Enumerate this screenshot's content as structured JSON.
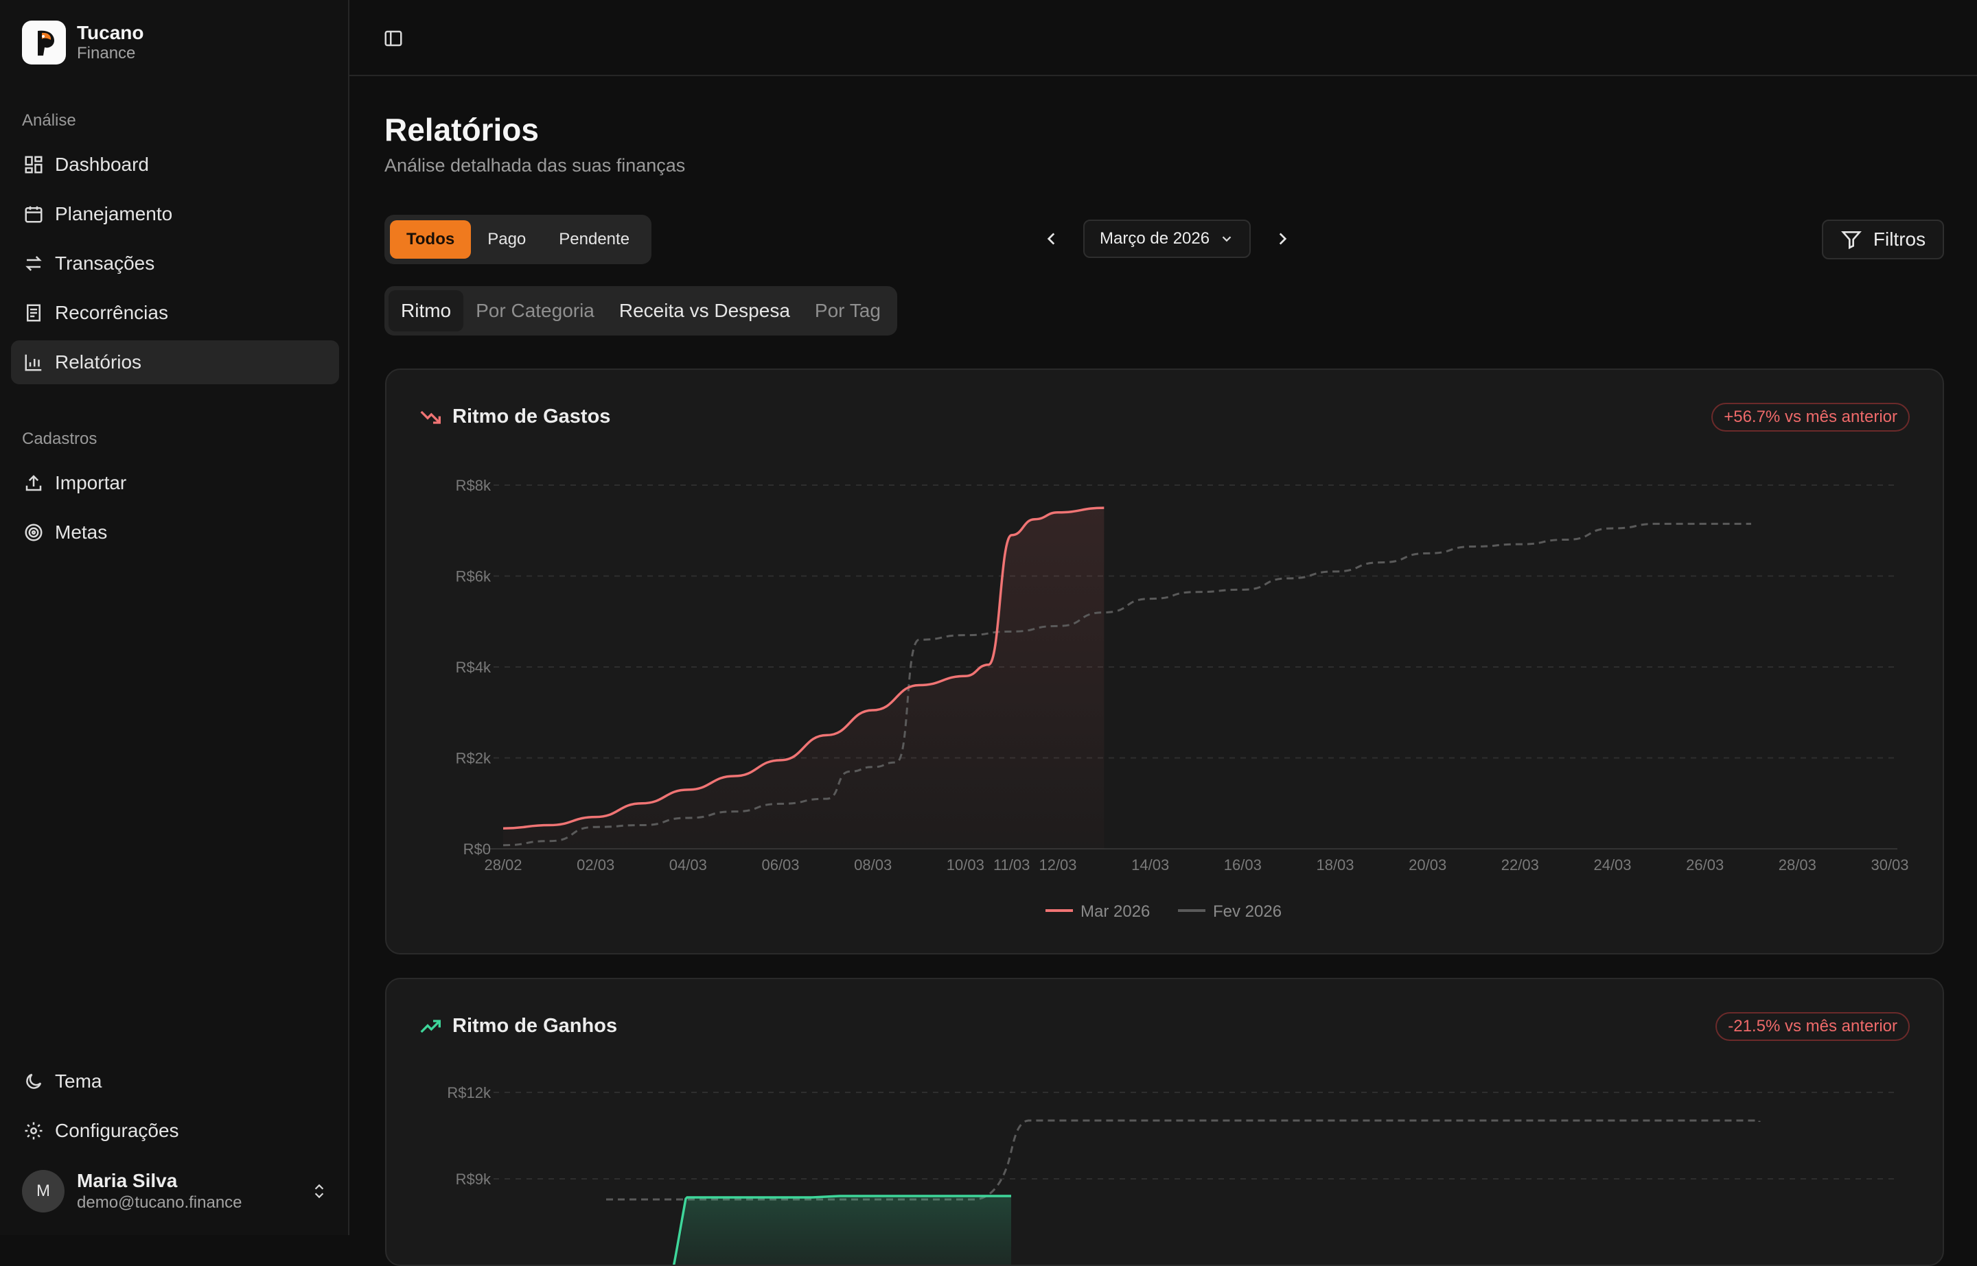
{
  "app": {
    "name": "Tucano",
    "subtitle": "Finance"
  },
  "sidebar": {
    "section_analysis": "Análise",
    "analysis_items": [
      {
        "label": "Dashboard",
        "icon": "dashboard-icon"
      },
      {
        "label": "Planejamento",
        "icon": "calendar-icon"
      },
      {
        "label": "Transações",
        "icon": "arrows-exchange-icon"
      },
      {
        "label": "Recorrências",
        "icon": "receipt-icon"
      },
      {
        "label": "Relatórios",
        "icon": "bar-chart-icon",
        "active": true
      }
    ],
    "section_registry": "Cadastros",
    "registry_items": [
      {
        "label": "Importar",
        "icon": "upload-icon"
      },
      {
        "label": "Metas",
        "icon": "target-icon"
      }
    ],
    "bottom_items": [
      {
        "label": "Tema",
        "icon": "moon-icon"
      },
      {
        "label": "Configurações",
        "icon": "gear-icon"
      }
    ],
    "user": {
      "initial": "M",
      "name": "Maria Silva",
      "email": "demo@tucano.finance"
    }
  },
  "header": {
    "title": "Relatórios",
    "subtitle": "Análise detalhada das suas finanças"
  },
  "status_filter": {
    "options": [
      "Todos",
      "Pago",
      "Pendente"
    ],
    "selected": "Todos"
  },
  "period": {
    "label": "Março de 2026"
  },
  "filters_button": "Filtros",
  "tabs": [
    {
      "label": "Ritmo",
      "active": true
    },
    {
      "label": "Por Categoria"
    },
    {
      "label": "Receita vs Despesa"
    },
    {
      "label": "Por Tag"
    }
  ],
  "colors": {
    "accent": "#f07a1e",
    "expense": "#f07474",
    "income": "#3ed69a",
    "previous": "#5a5a5a",
    "badge_negative": "#ef6a6a"
  },
  "cards": {
    "spending": {
      "title": "Ritmo de Gastos",
      "badge": "+56.7% vs mês anterior"
    },
    "earnings": {
      "title": "Ritmo de Ganhos",
      "badge": "-21.5% vs mês anterior"
    }
  },
  "chart_data": [
    {
      "type": "line",
      "title": "Ritmo de Gastos",
      "x_tick_labels": [
        "28/02",
        "02/03",
        "04/03",
        "06/03",
        "08/03",
        "10/03",
        "11/03",
        "12/03",
        "14/03",
        "16/03",
        "18/03",
        "20/03",
        "22/03",
        "24/03",
        "26/03",
        "28/03",
        "30/03"
      ],
      "y_tick_labels": [
        "R$0",
        "R$2k",
        "R$4k",
        "R$6k",
        "R$8k"
      ],
      "ylim": [
        0,
        8000
      ],
      "x_days_range": [
        0,
        30
      ],
      "legend_position": "bottom",
      "series": [
        {
          "name": "Mar 2026",
          "style": "solid-area",
          "color": "#f07474",
          "points": [
            [
              0,
              450
            ],
            [
              1,
              520
            ],
            [
              2,
              700
            ],
            [
              3,
              1000
            ],
            [
              4,
              1300
            ],
            [
              5,
              1600
            ],
            [
              6,
              1950
            ],
            [
              7,
              2500
            ],
            [
              8,
              3050
            ],
            [
              9,
              3600
            ],
            [
              10,
              3800
            ],
            [
              10.5,
              4050
            ],
            [
              11,
              6900
            ],
            [
              11.5,
              7250
            ],
            [
              12,
              7400
            ],
            [
              13,
              7500
            ]
          ]
        },
        {
          "name": "Fev 2026",
          "style": "dashed",
          "color": "#5a5a5a",
          "points": [
            [
              0,
              80
            ],
            [
              1,
              170
            ],
            [
              2,
              480
            ],
            [
              3,
              520
            ],
            [
              4,
              680
            ],
            [
              5,
              820
            ],
            [
              6,
              990
            ],
            [
              7,
              1100
            ],
            [
              7.5,
              1700
            ],
            [
              8,
              1800
            ],
            [
              8.5,
              1900
            ],
            [
              9,
              4600
            ],
            [
              10,
              4700
            ],
            [
              11,
              4780
            ],
            [
              12,
              4900
            ],
            [
              13,
              5200
            ],
            [
              14,
              5500
            ],
            [
              15,
              5650
            ],
            [
              16,
              5700
            ],
            [
              17,
              5950
            ],
            [
              18,
              6100
            ],
            [
              19,
              6300
            ],
            [
              20,
              6500
            ],
            [
              21,
              6650
            ],
            [
              22,
              6700
            ],
            [
              23,
              6800
            ],
            [
              24,
              7050
            ],
            [
              25,
              7150
            ],
            [
              26,
              7150
            ],
            [
              27,
              7150
            ]
          ]
        }
      ]
    },
    {
      "type": "line",
      "title": "Ritmo de Ganhos",
      "y_tick_labels": [
        "R$9k",
        "R$12k"
      ],
      "partial": true,
      "series": [
        {
          "name": "Mar 2026",
          "style": "solid-area",
          "color": "#3ed69a"
        },
        {
          "name": "Fev 2026",
          "style": "dashed",
          "color": "#5a5a5a"
        }
      ]
    }
  ]
}
